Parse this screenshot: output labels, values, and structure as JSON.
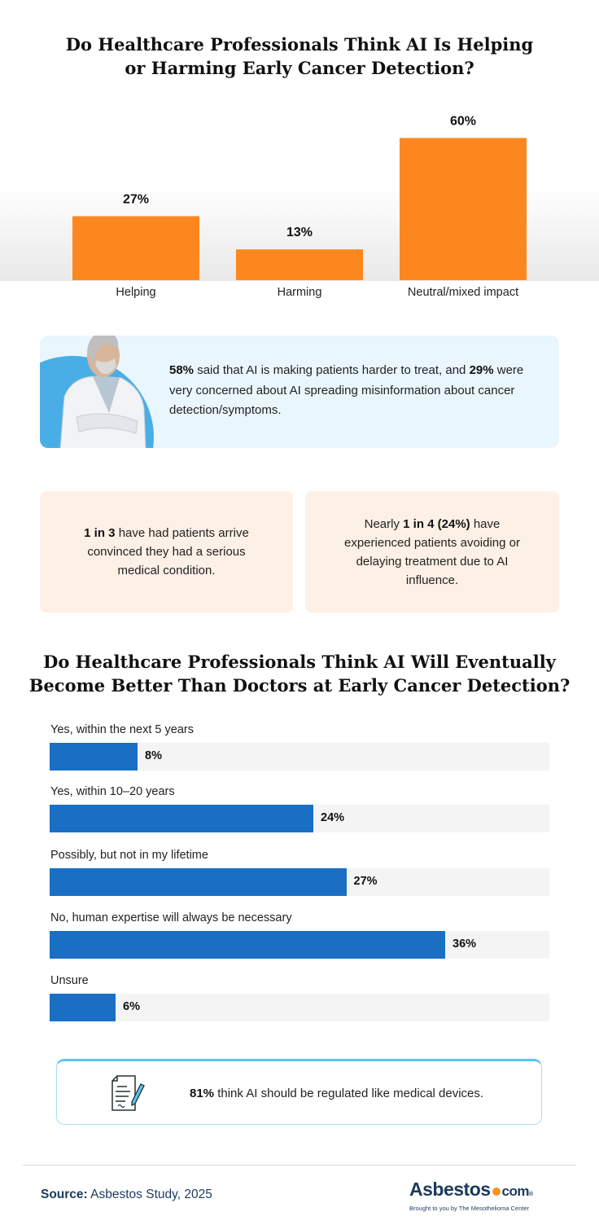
{
  "title1": [
    "Do Healthcare Professionals Think AI Is Helping",
    "or Harming Early Cancer Detection?"
  ],
  "chart_data": [
    {
      "type": "bar",
      "categories": [
        "Helping",
        "Harming",
        "Neutral/mixed impact"
      ],
      "values": [
        27,
        13,
        60
      ],
      "data_labels": [
        "27%",
        "13%",
        "60%"
      ],
      "ylim": [
        0,
        60
      ],
      "color": "#fd871f"
    },
    {
      "type": "bar",
      "orientation": "horizontal",
      "categories": [
        "Yes, within the next 5 years",
        "Yes, within 10–20 years",
        "Possibly, but not in my lifetime",
        "No, human expertise will always be necessary",
        "Unsure"
      ],
      "values": [
        8,
        24,
        27,
        36,
        6
      ],
      "data_labels": [
        "8%",
        "24%",
        "27%",
        "36%",
        "6%"
      ],
      "color": "#1a6fc4",
      "track_color": "#f4f4f4"
    }
  ],
  "callout": {
    "p1": "58%",
    "t1": " said that AI is making patients harder to treat, and ",
    "p2": "29%",
    "t2": " were very concerned about AI spreading misinformation about cancer detection/symptoms."
  },
  "cards": [
    {
      "b": "1 in 3",
      "t": " have had patients arrive convinced they had a serious medical condition."
    },
    {
      "pre": "Nearly ",
      "b": "1 in 4 (24%)",
      "t": " have experienced patients avoiding or delaying treatment due to AI influence."
    }
  ],
  "title2": [
    "Do Healthcare Professionals Think AI Will Eventually",
    "Become Better Than Doctors at Early Cancer Detection?"
  ],
  "note": {
    "b": "81%",
    "t": " think AI should be regulated like medical devices.",
    "icon": "document-pen-icon"
  },
  "footer": {
    "source_label": "Source:",
    "source": " Asbestos Study, 2025",
    "logo_main": "Asbestos",
    "logo_com": "com",
    "logo_sub": "Brought to you by The Mesothelioma Center"
  }
}
